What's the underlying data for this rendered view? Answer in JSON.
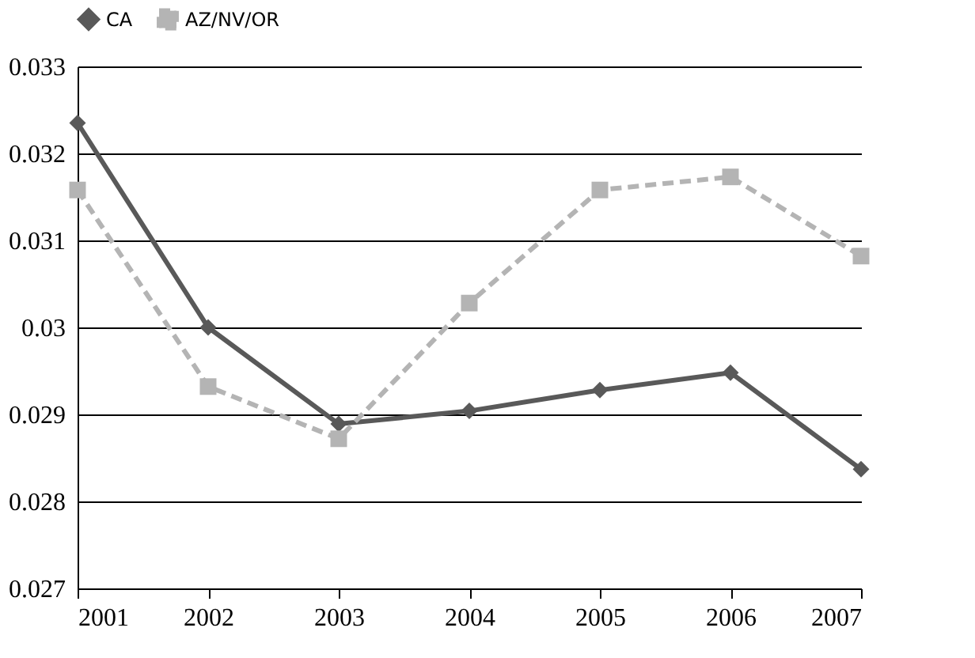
{
  "chart_data": {
    "type": "line",
    "categories": [
      "2001",
      "2002",
      "2003",
      "2004",
      "2005",
      "2006",
      "2007"
    ],
    "series": [
      {
        "name": "CA",
        "color": "#595959",
        "marker": "diamond",
        "line_style": "solid",
        "values": [
          0.03235,
          0.03,
          0.02889,
          0.02904,
          0.02928,
          0.02948,
          0.02837
        ]
      },
      {
        "name": "AZ/NV/OR",
        "color": "#b4b4b4",
        "marker": "square",
        "line_style": "dashed",
        "values": [
          0.03158,
          0.02932,
          0.02872,
          0.03028,
          0.03158,
          0.03173,
          0.03082
        ]
      }
    ],
    "ylim": [
      0.027,
      0.033
    ],
    "yticks": [
      0.027,
      0.028,
      0.029,
      0.03,
      0.031,
      0.032,
      0.033
    ],
    "grid": "y",
    "legend": "top"
  }
}
